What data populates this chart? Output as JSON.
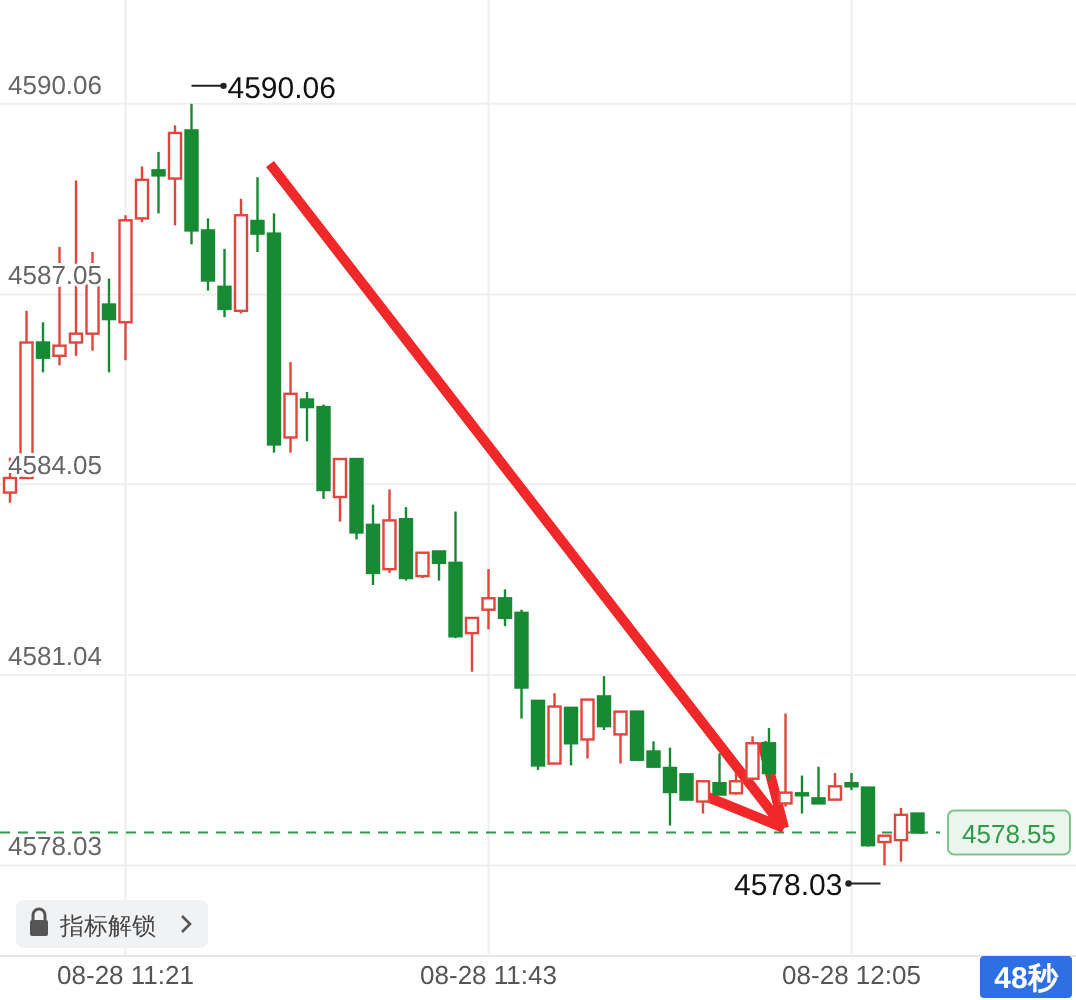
{
  "chart_data": {
    "type": "candlestick",
    "categories": [
      null,
      null,
      null,
      null,
      null,
      null,
      null,
      "08-28 11:21",
      null,
      null,
      null,
      null,
      null,
      null,
      null,
      null,
      null,
      null,
      null,
      null,
      null,
      null,
      null,
      null,
      null,
      null,
      null,
      null,
      null,
      "08-28 11:43",
      null,
      null,
      null,
      null,
      null,
      null,
      null,
      null,
      null,
      null,
      null,
      null,
      null,
      null,
      null,
      null,
      null,
      null,
      null,
      null,
      null,
      "08-28 12:05",
      null,
      null,
      null,
      null
    ],
    "ohlc": [
      [
        4583.92,
        4584.47,
        4583.76,
        4584.15
      ],
      [
        4584.15,
        4586.79,
        4584.15,
        4586.29
      ],
      [
        4586.29,
        4586.61,
        4585.82,
        4586.05
      ],
      [
        4586.08,
        4587.8,
        4585.93,
        4586.24
      ],
      [
        4586.29,
        4588.85,
        4586.08,
        4586.43
      ],
      [
        4586.43,
        4587.72,
        4586.16,
        4587.35
      ],
      [
        4586.89,
        4587.3,
        4585.82,
        4586.66
      ],
      [
        4586.61,
        4588.3,
        4586.01,
        4588.22
      ],
      [
        4588.25,
        4589.07,
        4588.19,
        4588.86
      ],
      [
        4589.01,
        4589.3,
        4588.33,
        4588.93
      ],
      [
        4588.88,
        4589.72,
        4588.14,
        4589.6
      ],
      [
        4589.64,
        4590.06,
        4587.84,
        4588.06
      ],
      [
        4588.06,
        4588.25,
        4587.11,
        4587.27
      ],
      [
        4587.17,
        4587.77,
        4586.69,
        4586.82
      ],
      [
        4586.79,
        4588.56,
        4586.75,
        4588.3
      ],
      [
        4588.21,
        4588.9,
        4587.72,
        4588.01
      ],
      [
        4588.01,
        4588.33,
        4584.55,
        4584.68
      ],
      [
        4584.79,
        4585.98,
        4584.55,
        4585.48
      ],
      [
        4585.39,
        4585.51,
        4584.73,
        4585.27
      ],
      [
        4585.27,
        4585.31,
        4583.82,
        4583.96
      ],
      [
        4583.85,
        4584.45,
        4583.46,
        4584.45
      ],
      [
        4584.45,
        4584.45,
        4583.18,
        4583.29
      ],
      [
        4583.41,
        4583.73,
        4582.46,
        4582.65
      ],
      [
        4582.71,
        4583.97,
        4582.65,
        4583.48
      ],
      [
        4583.5,
        4583.69,
        4582.53,
        4582.57
      ],
      [
        4582.6,
        4582.97,
        4582.57,
        4582.97
      ],
      [
        4582.99,
        4582.99,
        4582.53,
        4582.81
      ],
      [
        4582.81,
        4583.62,
        4581.62,
        4581.65
      ],
      [
        4581.7,
        4581.94,
        4581.09,
        4581.94
      ],
      [
        4582.07,
        4582.71,
        4581.76,
        4582.25
      ],
      [
        4582.25,
        4582.39,
        4581.81,
        4581.94
      ],
      [
        4582.02,
        4582.07,
        4580.35,
        4580.84
      ],
      [
        4580.63,
        4580.63,
        4579.54,
        4579.61
      ],
      [
        4579.64,
        4580.75,
        4579.64,
        4580.54
      ],
      [
        4580.52,
        4580.52,
        4579.61,
        4579.96
      ],
      [
        4580.02,
        4580.65,
        4579.72,
        4580.65
      ],
      [
        4580.7,
        4581.02,
        4580.17,
        4580.23
      ],
      [
        4580.1,
        4580.46,
        4579.64,
        4580.46
      ],
      [
        4580.46,
        4580.46,
        4579.68,
        4579.7
      ],
      [
        4579.83,
        4579.99,
        4579.59,
        4579.59
      ],
      [
        4579.57,
        4579.89,
        4578.66,
        4579.19
      ],
      [
        4579.47,
        4579.47,
        4579.07,
        4579.07
      ],
      [
        4579.04,
        4579.36,
        4578.85,
        4579.36
      ],
      [
        4579.33,
        4579.8,
        4579.15,
        4579.15
      ],
      [
        4579.17,
        4579.49,
        4579.15,
        4579.36
      ],
      [
        4579.4,
        4580.07,
        4579.38,
        4579.96
      ],
      [
        4579.96,
        4580.2,
        4579.38,
        4579.49
      ],
      [
        4579.01,
        4580.43,
        4578.96,
        4579.18
      ],
      [
        4579.17,
        4579.45,
        4578.85,
        4579.14
      ],
      [
        4579.09,
        4579.59,
        4579.01,
        4579.01
      ],
      [
        4579.07,
        4579.49,
        4579.07,
        4579.28
      ],
      [
        4579.33,
        4579.49,
        4579.22,
        4579.28
      ],
      [
        4579.26,
        4579.26,
        4578.33,
        4578.35
      ],
      [
        4578.4,
        4578.5,
        4578.03,
        4578.5
      ],
      [
        4578.43,
        4578.94,
        4578.09,
        4578.83
      ],
      [
        4578.85,
        4578.85,
        4578.55,
        4578.55
      ]
    ],
    "ylim": [
      4576.6,
      4591.7
    ],
    "yticks": [
      4578.03,
      4581.04,
      4584.05,
      4587.05,
      4590.06
    ],
    "grid": true,
    "ref_lines": [
      {
        "axis": "y",
        "value": 4578.55,
        "label": "4578.55",
        "color": "#2e9a4a",
        "line_style": "dashed"
      }
    ],
    "annotations": [
      "4590.06",
      "4578.03",
      "指标解锁",
      "48秒"
    ]
  }
}
